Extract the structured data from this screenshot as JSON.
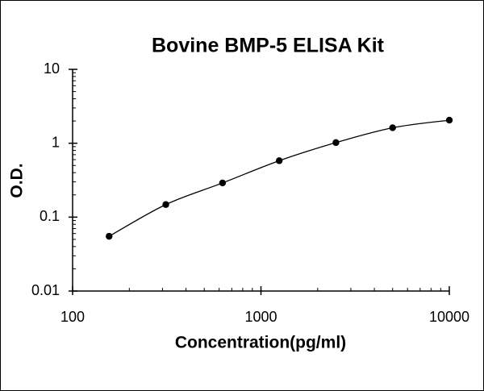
{
  "chart_data": {
    "type": "scatter",
    "title": "Bovine BMP-5 ELISA Kit",
    "x_label": "Concentration(pg/ml)",
    "y_label": "O.D.",
    "x": [
      156.25,
      312.5,
      625,
      1250,
      2500,
      5000,
      10000
    ],
    "values": [
      0.055,
      0.148,
      0.29,
      0.58,
      1.02,
      1.62,
      2.05
    ],
    "color": "#000000",
    "trendline": true,
    "log_x": true,
    "log_y": true,
    "xlim": [
      100,
      10000
    ],
    "xticks": [
      100,
      1000,
      10000
    ],
    "ylim": [
      0.01,
      10
    ],
    "yticks": [
      0.01,
      0.1,
      1,
      10
    ]
  }
}
